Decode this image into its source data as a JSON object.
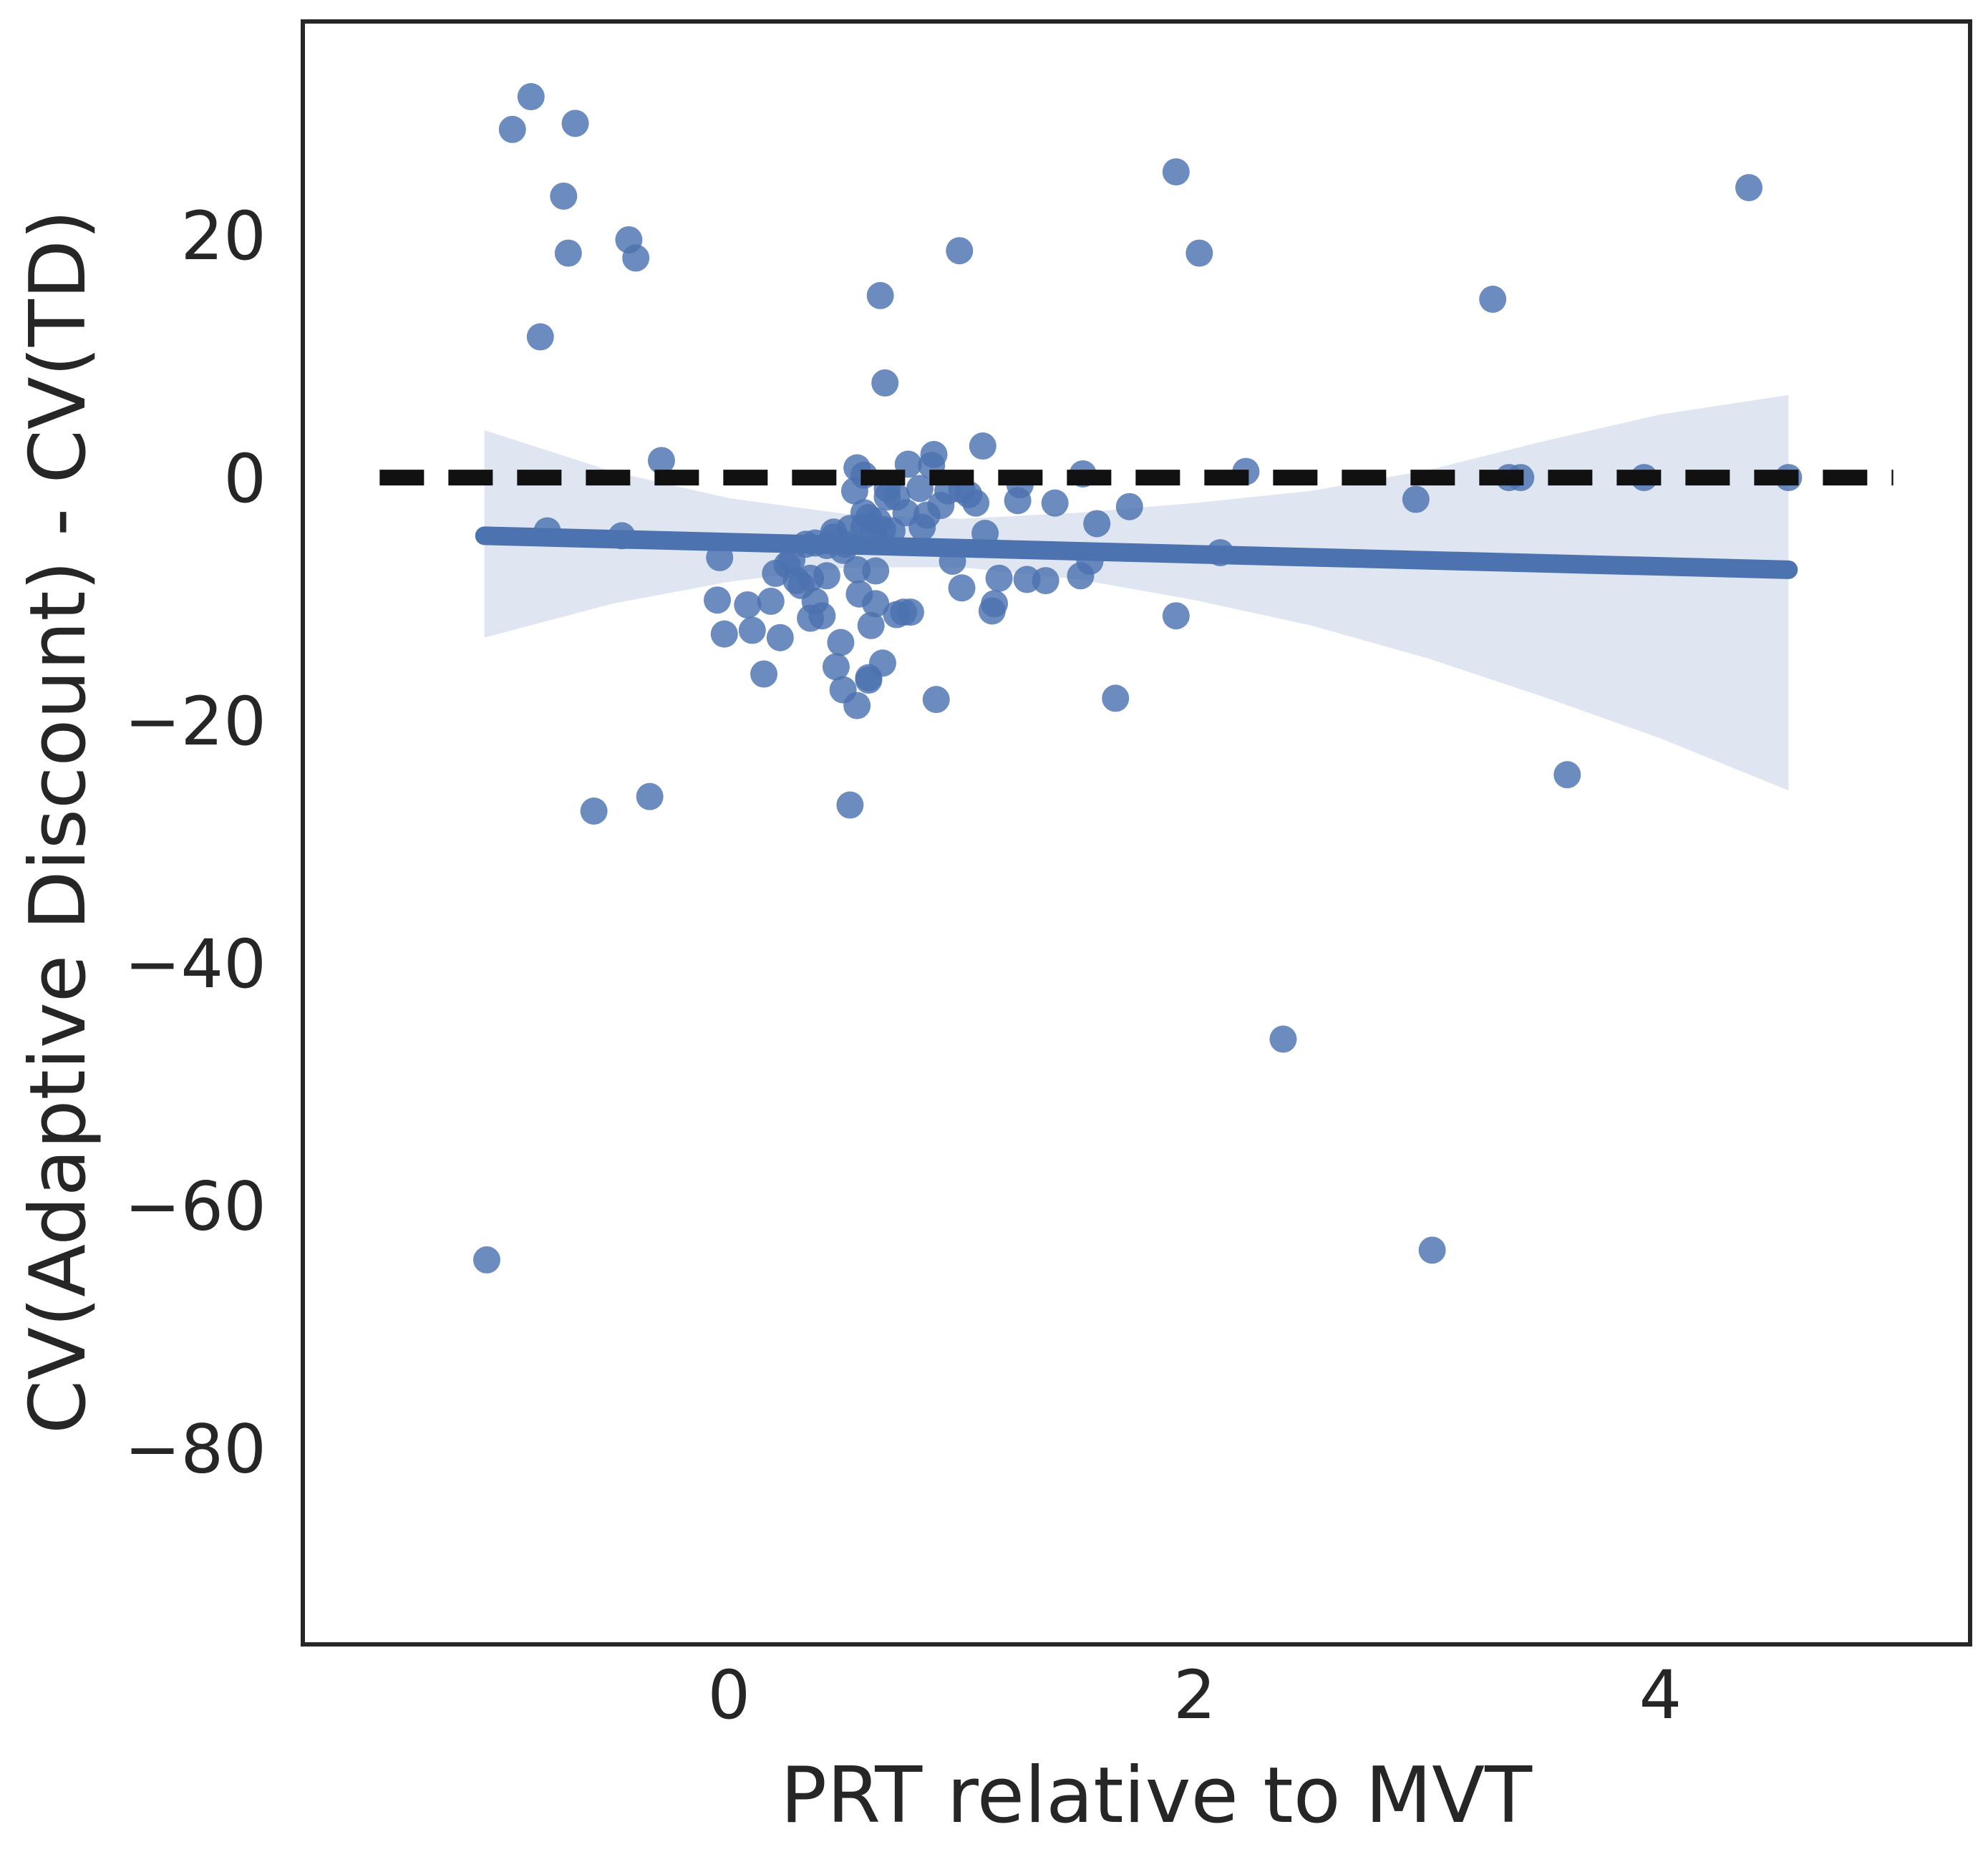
{
  "chart_data": {
    "type": "scatter",
    "title": "",
    "xlabel": "PRT relative to MVT",
    "ylabel": "CV(Adaptive Discount) - CV(TD)",
    "xlim": [
      -1.83,
      5.33
    ],
    "ylim": [
      -96.2,
      37.6
    ],
    "xticks": [
      0,
      2,
      4
    ],
    "yticks": [
      -80,
      -60,
      -40,
      -20,
      0,
      20
    ],
    "grid": false,
    "colors": {
      "points": "#4c72b0",
      "fit_line": "#4c72b0",
      "confidence_band": "#dfe6f2",
      "reference_line": "#111111",
      "axes": "#262626"
    },
    "reference_line": {
      "y": 0,
      "x_range": [
        -1.5,
        5.0
      ],
      "style": "dashed"
    },
    "regression": {
      "x": [
        -1.05,
        4.55
      ],
      "y": [
        -4.8,
        -7.6
      ]
    },
    "confidence_band": {
      "x": [
        -1.05,
        -0.5,
        0,
        0.5,
        1.0,
        1.5,
        2.0,
        2.5,
        3.0,
        3.5,
        4.0,
        4.55
      ],
      "upper": [
        3.9,
        0.5,
        -1.7,
        -3.0,
        -3.4,
        -2.9,
        -2.1,
        -1.1,
        0.6,
        3.0,
        5.2,
        6.8
      ],
      "lower": [
        -13.2,
        -10.4,
        -8.6,
        -7.4,
        -7.4,
        -8.4,
        -10.1,
        -12.2,
        -14.9,
        -18.1,
        -21.5,
        -25.8
      ]
    },
    "points": {
      "x": [
        -0.85,
        -0.93,
        -0.66,
        -0.71,
        -0.69,
        -0.43,
        -0.4,
        -0.81,
        -1.04,
        -0.78,
        -0.29,
        -0.58,
        -0.34,
        -0.46,
        -0.04,
        -0.05,
        -0.02,
        0.1,
        0.15,
        0.08,
        0.22,
        0.29,
        0.31,
        0.2,
        0.18,
        0.25,
        0.35,
        0.42,
        0.37,
        0.4,
        0.33,
        0.48,
        0.5,
        0.52,
        0.49,
        0.55,
        0.56,
        0.58,
        0.6,
        0.62,
        0.64,
        0.66,
        0.68,
        0.63,
        0.7,
        0.72,
        0.75,
        0.65,
        0.67,
        0.54,
        0.61,
        0.77,
        0.82,
        0.85,
        0.88,
        0.91,
        0.96,
        1.0,
        1.03,
        1.06,
        1.1,
        1.13,
        1.16,
        0.99,
        0.94,
        0.87,
        0.83,
        1.14,
        1.25,
        1.28,
        1.36,
        1.24,
        1.4,
        1.52,
        1.58,
        1.72,
        1.55,
        1.51,
        1.66,
        0.55,
        0.6,
        0.6,
        0.46,
        0.66,
        0.52,
        0.63,
        0.58,
        0.78,
        1.09,
        0.89,
        0.68,
        0.49,
        0.55,
        0.72,
        0.45,
        0.45,
        1.0,
        0.76,
        0.42,
        0.37,
        0.27,
        0.58,
        0.35,
        1.92,
        2.02,
        2.22,
        2.11,
        2.38,
        1.92,
        2.95,
        3.02,
        3.28,
        3.35,
        3.4,
        3.6,
        3.93,
        4.38,
        4.55
      ],
      "y": [
        31.4,
        28.7,
        29.2,
        23.2,
        18.5,
        19.6,
        18.1,
        11.6,
        -64.5,
        -4.4,
        1.4,
        -27.5,
        -26.3,
        -4.8,
        -6.6,
        -10.1,
        -12.9,
        -12.6,
        -16.2,
        -10.5,
        -13.2,
        -8.5,
        -8.9,
        -7.9,
        -10.2,
        -7.2,
        -11.6,
        -8.1,
        -10.2,
        -11.4,
        -5.5,
        -13.6,
        -5.5,
        -4.2,
        -6.0,
        -7.6,
        -9.6,
        0.2,
        -3.3,
        -4.6,
        -3.6,
        -4.3,
        -1.6,
        -7.7,
        -4.4,
        -11.3,
        -11.1,
        15.0,
        7.8,
        -1.1,
        -12.2,
        1.1,
        -0.9,
        -3.1,
        1.9,
        -2.3,
        -6.9,
        -9.1,
        -1.4,
        -2.1,
        -4.6,
        -11.0,
        -8.3,
        18.7,
        -1.1,
        1.0,
        -4.1,
        -10.4,
        -0.6,
        -8.4,
        -8.5,
        -1.9,
        -2.1,
        0.3,
        -3.8,
        -2.4,
        -6.9,
        -8.1,
        -18.2,
        -18.8,
        -16.7,
        -16.5,
        -15.6,
        -15.3,
        -27.0,
        -10.4,
        -4.1,
        -11.1,
        2.6,
        -18.3,
        -0.9,
        -17.5,
        0.8,
        -1.6,
        -4.9,
        -4.5,
        -1.0,
        -2.9,
        -5.6,
        -5.4,
        -6.8,
        -2.9,
        -8.3,
        25.2,
        18.5,
        0.5,
        -6.2,
        -46.3,
        -11.4,
        -1.8,
        -63.7,
        14.7,
        0.0,
        0.0,
        -24.5,
        0.0,
        23.9,
        0.0
      ]
    }
  }
}
